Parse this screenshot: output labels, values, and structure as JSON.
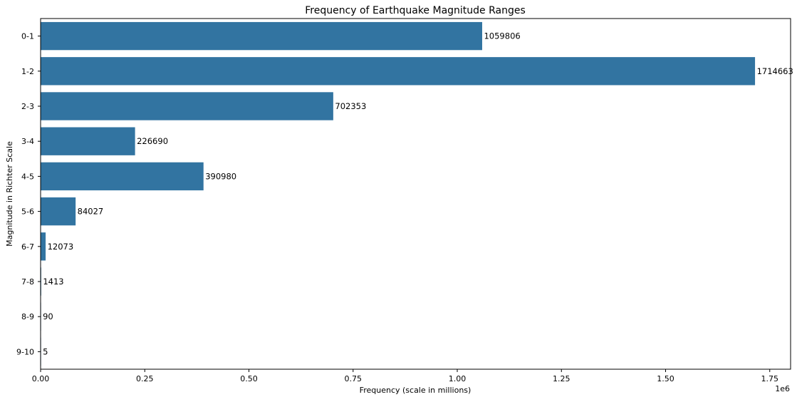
{
  "chart_data": {
    "type": "bar",
    "orientation": "horizontal",
    "title": "Frequency of Earthquake Magnitude Ranges",
    "xlabel": "Frequency (scale in millions)",
    "ylabel": "Magnitude in Richter Scale",
    "x_offset_label": "1e6",
    "categories": [
      "0-1",
      "1-2",
      "2-3",
      "3-4",
      "4-5",
      "5-6",
      "6-7",
      "7-8",
      "8-9",
      "9-10"
    ],
    "values": [
      1059806,
      1714663,
      702353,
      226690,
      390980,
      84027,
      12073,
      1413,
      90,
      5
    ],
    "data_labels": [
      "1059806",
      "1714663",
      "702353",
      "226690",
      "390980",
      "84027",
      "12073",
      "1413",
      "90",
      "5"
    ],
    "xlim": [
      0,
      1800000
    ],
    "x_ticks": [
      0,
      250000,
      500000,
      750000,
      1000000,
      1250000,
      1500000,
      1750000
    ],
    "x_tick_labels": [
      "0.00",
      "0.25",
      "0.50",
      "0.75",
      "1.00",
      "1.25",
      "1.50",
      "1.75"
    ],
    "grid": false,
    "legend": "none",
    "bar_color": "#3274a1"
  }
}
